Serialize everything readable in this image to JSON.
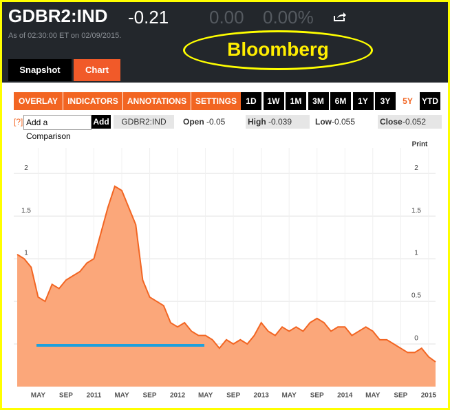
{
  "header": {
    "ticker": "GDBR2:IND",
    "price": "-0.21",
    "change": "0.00",
    "change_pct": "0.00%",
    "as_of": "As of 02:30:00 ET on 02/09/2015.",
    "annotation": "Bloomberg"
  },
  "tabs": [
    "Snapshot",
    "Chart"
  ],
  "toolbar": {
    "menus": [
      "OVERLAY",
      "INDICATORS",
      "ANNOTATIONS",
      "SETTINGS"
    ],
    "ranges": [
      "1D",
      "1W",
      "1M",
      "3M",
      "6M",
      "1Y",
      "3Y",
      "5Y",
      "YTD"
    ],
    "active_range": "5Y"
  },
  "quote_bar": {
    "help": "[?]",
    "comparison": "Add a Comparison",
    "add": "Add",
    "symbol": "GDBR2:IND",
    "stats": [
      [
        "Open",
        "-0.05"
      ],
      [
        "High",
        "-0.039"
      ],
      [
        "Low",
        "-0.055"
      ],
      [
        "Close",
        "-0.052"
      ]
    ]
  },
  "print": "Print",
  "chart_data": {
    "type": "area",
    "categories": [
      null,
      null,
      null,
      "MAY",
      null,
      null,
      null,
      "SEP",
      null,
      null,
      null,
      "2011",
      null,
      null,
      null,
      "MAY",
      null,
      null,
      null,
      "SEP",
      null,
      null,
      null,
      "2012",
      null,
      null,
      null,
      "MAY",
      null,
      null,
      null,
      "SEP",
      null,
      null,
      null,
      "2013",
      null,
      null,
      null,
      "MAY",
      null,
      null,
      null,
      "SEP",
      null,
      null,
      null,
      "2014",
      null,
      null,
      null,
      "MAY",
      null,
      null,
      null,
      "SEP",
      null,
      null,
      null,
      "2015",
      null
    ],
    "series": [
      {
        "color": "#f26522",
        "fill": "#fba77a",
        "values": [
          1.05,
          1.0,
          0.9,
          0.55,
          0.5,
          0.7,
          0.65,
          0.75,
          0.8,
          0.85,
          0.95,
          1.0,
          1.3,
          1.6,
          1.85,
          1.8,
          1.6,
          1.4,
          0.75,
          0.55,
          0.5,
          0.45,
          0.25,
          0.2,
          0.25,
          0.15,
          0.1,
          0.1,
          0.05,
          -0.05,
          0.05,
          0.0,
          0.05,
          0.0,
          0.1,
          0.25,
          0.15,
          0.1,
          0.2,
          0.15,
          0.2,
          0.15,
          0.25,
          0.3,
          0.25,
          0.15,
          0.2,
          0.2,
          0.1,
          0.15,
          0.2,
          0.15,
          0.05,
          0.05,
          0.0,
          -0.05,
          -0.1,
          -0.1,
          -0.05,
          -0.15,
          -0.21
        ]
      }
    ],
    "ylim": [
      -0.5,
      2.3
    ],
    "yticks": [
      0,
      0.5,
      1,
      1.5,
      2
    ],
    "grid": true
  }
}
